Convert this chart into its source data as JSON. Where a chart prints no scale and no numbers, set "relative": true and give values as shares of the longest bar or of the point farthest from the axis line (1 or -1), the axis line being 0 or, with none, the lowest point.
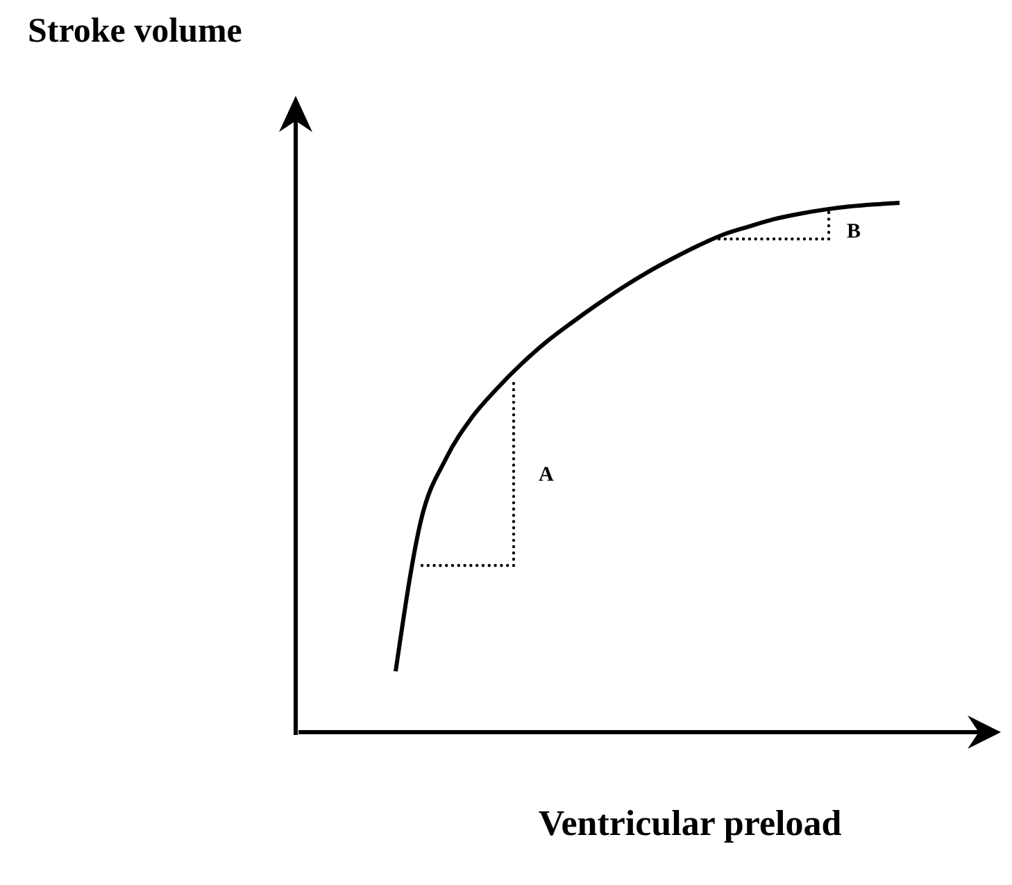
{
  "chart_data": {
    "type": "line",
    "relative": true,
    "xlabel": "Ventricular preload",
    "categories": [
      null,
      null,
      null,
      null,
      null,
      null,
      null,
      null,
      null,
      null,
      null,
      null,
      null,
      null,
      null,
      null,
      null,
      null,
      null,
      null,
      null
    ],
    "series": [
      {
        "color": "#000000",
        "values": [
          0.115,
          0.399,
          0.517,
          0.593,
          0.648,
          0.696,
          0.738,
          0.774,
          0.808,
          0.84,
          0.869,
          0.895,
          0.919,
          0.94,
          0.955,
          0.969,
          0.979,
          0.987,
          0.993,
          0.997,
          1
        ]
      }
    ],
    "annotations": [
      "Stroke volume",
      "A",
      "B"
    ],
    "grid": false,
    "marker": "none",
    "line_style": "solid"
  }
}
